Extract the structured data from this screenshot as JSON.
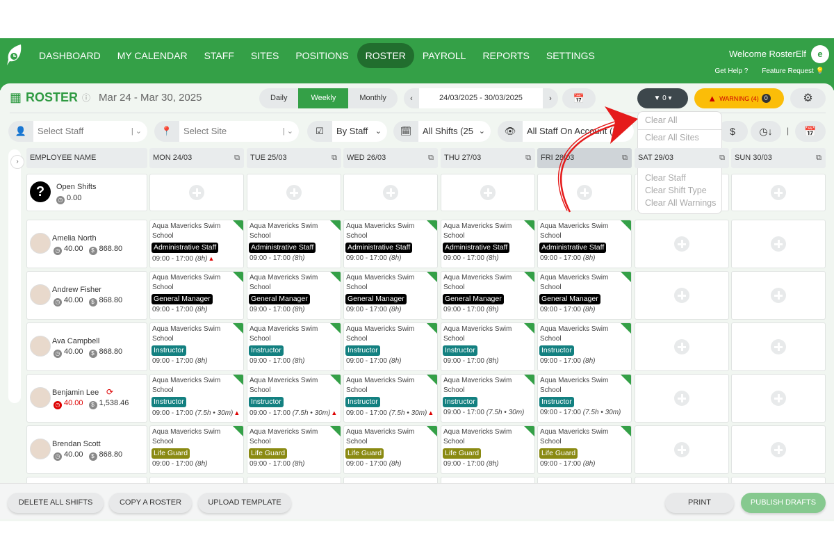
{
  "nav": {
    "items": [
      "DASHBOARD",
      "MY CALENDAR",
      "STAFF",
      "SITES",
      "POSITIONS",
      "ROSTER",
      "PAYROLL",
      "REPORTS",
      "SETTINGS"
    ],
    "active": "ROSTER",
    "welcome": "Welcome RosterElf",
    "get_help": "Get Help",
    "feature_request": "Feature Request"
  },
  "header": {
    "title": "ROSTER",
    "date_range": "Mar 24 - Mar 30, 2025",
    "views": [
      "Daily",
      "Weekly",
      "Monthly"
    ],
    "active_view": "Weekly",
    "date_picker": "24/03/2025 - 30/03/2025",
    "filter_count": "0",
    "warning_label": "WARNING (4)",
    "warning_count": "0"
  },
  "filters": {
    "staff_placeholder": "Select Staff",
    "site_placeholder": "Select Site",
    "group_by": "By Staff",
    "shifts": "All Shifts (25)",
    "visibility": "All Staff On Account (3"
  },
  "filter_menu": {
    "items": [
      "Clear All",
      "Clear All Sites",
      "Clear Staff",
      "Clear Shift Type",
      "Clear All Warnings"
    ]
  },
  "table": {
    "name_header": "EMPLOYEE NAME",
    "days": [
      "MON 24/03",
      "TUE 25/03",
      "WED 26/03",
      "THU 27/03",
      "FRI 28/03",
      "SAT 29/03",
      "SUN 30/03"
    ],
    "highlighted_day": "FRI 28/03",
    "open_shifts": {
      "label": "Open Shifts",
      "hours": "0.00"
    },
    "employees": [
      {
        "name": "Amelia North",
        "hours": "40.00",
        "pay": "868.80",
        "hours_alert": false,
        "role": "Administrative Staff",
        "role_color": "#000000",
        "duration": "(8h)",
        "warnings": [
          0
        ]
      },
      {
        "name": "Andrew Fisher",
        "hours": "40.00",
        "pay": "868.80",
        "hours_alert": false,
        "role": "General Manager",
        "role_color": "#000000",
        "duration": "(8h)",
        "warnings": []
      },
      {
        "name": "Ava Campbell",
        "hours": "40.00",
        "pay": "868.80",
        "hours_alert": false,
        "role": "Instructor",
        "role_color": "#138080",
        "duration": "(8h)",
        "warnings": []
      },
      {
        "name": "Benjamin Lee",
        "hours": "40.00",
        "pay": "1,538.46",
        "hours_alert": true,
        "role": "Instructor",
        "role_color": "#138080",
        "duration": "(7.5h • 30m)",
        "warnings": [
          0,
          1,
          2
        ]
      },
      {
        "name": "Brendan Scott",
        "hours": "40.00",
        "pay": "868.80",
        "hours_alert": false,
        "role": "Life Guard",
        "role_color": "#8a8a12",
        "duration": "(8h)",
        "warnings": []
      }
    ],
    "site": "Aqua Mavericks Swim School",
    "time": "09:00 - 17:00",
    "shift_days": 5
  },
  "footer": {
    "delete": "DELETE ALL SHIFTS",
    "copy": "COPY A ROSTER",
    "upload": "UPLOAD TEMPLATE",
    "print": "PRINT",
    "publish": "PUBLISH DRAFTS"
  },
  "colors": {
    "brand": "#34a047",
    "active_nav": "#216e2e",
    "warning": "#fbbd08",
    "publish": "#86c98f"
  }
}
